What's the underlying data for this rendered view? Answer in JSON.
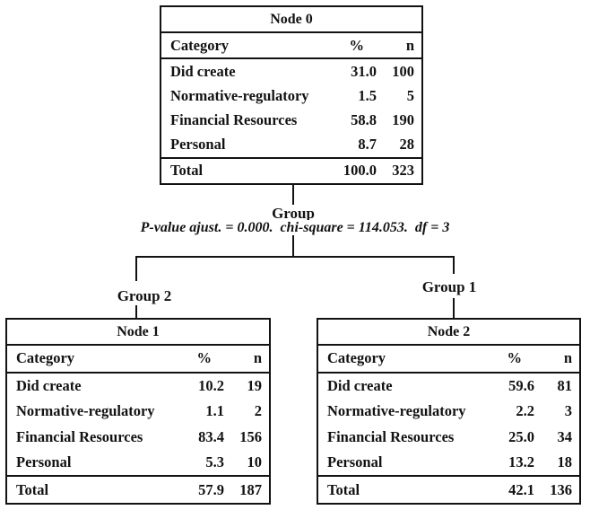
{
  "diagram": {
    "split_variable": "Group",
    "split_stats": "P-value ajust. = 0.000.  chi-square = 114.053.  df = 3",
    "left_branch_label": "Group 2",
    "right_branch_label": "Group 1"
  },
  "columns": {
    "category": "Category",
    "percent": "%",
    "n": "n"
  },
  "nodes": [
    {
      "title": "Node 0",
      "rows": [
        {
          "category": "Did create",
          "percent": "31.0",
          "n": "100"
        },
        {
          "category": "Normative-regulatory",
          "percent": "1.5",
          "n": "5"
        },
        {
          "category": "Financial Resources",
          "percent": "58.8",
          "n": "190"
        },
        {
          "category": "Personal",
          "percent": "8.7",
          "n": "28"
        }
      ],
      "total": {
        "label": "Total",
        "percent": "100.0",
        "n": "323"
      }
    },
    {
      "title": "Node 1",
      "rows": [
        {
          "category": "Did create",
          "percent": "10.2",
          "n": "19"
        },
        {
          "category": "Normative-regulatory",
          "percent": "1.1",
          "n": "2"
        },
        {
          "category": "Financial Resources",
          "percent": "83.4",
          "n": "156"
        },
        {
          "category": "Personal",
          "percent": "5.3",
          "n": "10"
        }
      ],
      "total": {
        "label": "Total",
        "percent": "57.9",
        "n": "187"
      }
    },
    {
      "title": "Node 2",
      "rows": [
        {
          "category": "Did create",
          "percent": "59.6",
          "n": "81"
        },
        {
          "category": "Normative-regulatory",
          "percent": "2.2",
          "n": "3"
        },
        {
          "category": "Financial Resources",
          "percent": "25.0",
          "n": "34"
        },
        {
          "category": "Personal",
          "percent": "13.2",
          "n": "18"
        }
      ],
      "total": {
        "label": "Total",
        "percent": "42.1",
        "n": "136"
      }
    }
  ],
  "colors": {
    "ink": "#121212",
    "background": "#ffffff"
  }
}
